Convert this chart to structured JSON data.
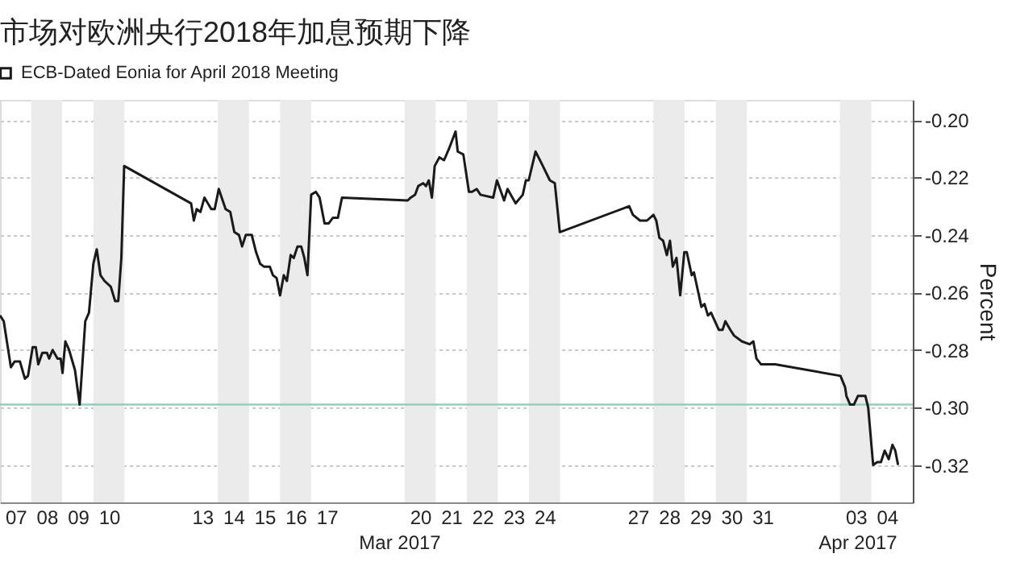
{
  "chart_data": {
    "type": "line",
    "title": "市场对欧洲央行2018年加息预期下降",
    "ylabel": "Percent",
    "legend": "top left",
    "grid": "y",
    "marker": "none",
    "line_style": "solid",
    "xlim": [
      "2017-03-07T00:00",
      "2017-04-05T08:00"
    ],
    "xticks": [
      {
        "value": "2017-03-07T12:00",
        "label": "07"
      },
      {
        "value": "2017-03-08T12:00",
        "label": "08"
      },
      {
        "value": "2017-03-09T12:00",
        "label": "09"
      },
      {
        "value": "2017-03-10T12:00",
        "label": "10"
      },
      {
        "value": "2017-03-13T12:00",
        "label": "13"
      },
      {
        "value": "2017-03-14T12:00",
        "label": "14"
      },
      {
        "value": "2017-03-15T12:00",
        "label": "15"
      },
      {
        "value": "2017-03-16T12:00",
        "label": "16"
      },
      {
        "value": "2017-03-17T12:00",
        "label": "17"
      },
      {
        "value": "2017-03-20T12:00",
        "label": "20"
      },
      {
        "value": "2017-03-21T12:00",
        "label": "21"
      },
      {
        "value": "2017-03-22T12:00",
        "label": "22"
      },
      {
        "value": "2017-03-23T12:00",
        "label": "23"
      },
      {
        "value": "2017-03-24T12:00",
        "label": "24"
      },
      {
        "value": "2017-03-27T12:00",
        "label": "27"
      },
      {
        "value": "2017-03-28T12:00",
        "label": "28"
      },
      {
        "value": "2017-03-29T12:00",
        "label": "29"
      },
      {
        "value": "2017-03-30T12:00",
        "label": "30"
      },
      {
        "value": "2017-03-31T12:00",
        "label": "31"
      },
      {
        "value": "2017-04-03T12:00",
        "label": "03"
      },
      {
        "value": "2017-04-04T12:00",
        "label": "04"
      }
    ],
    "ylim": [
      -0.333,
      -0.193
    ],
    "yticks": [
      {
        "value": -0.2,
        "label": "-0.20"
      },
      {
        "value": -0.22,
        "label": "-0.22"
      },
      {
        "value": -0.24,
        "label": "-0.24"
      },
      {
        "value": -0.26,
        "label": "-0.26"
      },
      {
        "value": -0.28,
        "label": "-0.28"
      },
      {
        "value": -0.3,
        "label": "-0.30"
      },
      {
        "value": -0.32,
        "label": "-0.32"
      }
    ],
    "annotations": [
      "Mar 2017",
      "Apr 2017"
    ],
    "ref_lines": [
      {
        "axis": "y",
        "value": -0.299,
        "color": "#8fd0b8"
      }
    ],
    "bands": [
      {
        "axis": "x",
        "from": "2017-03-08",
        "to": "2017-03-09",
        "color": "#ebebeb"
      },
      {
        "axis": "x",
        "from": "2017-03-10",
        "to": "2017-03-11",
        "color": "#ebebeb"
      },
      {
        "axis": "x",
        "from": "2017-03-14",
        "to": "2017-03-15",
        "color": "#ebebeb"
      },
      {
        "axis": "x",
        "from": "2017-03-16",
        "to": "2017-03-17",
        "color": "#ebebeb"
      },
      {
        "axis": "x",
        "from": "2017-03-20",
        "to": "2017-03-21",
        "color": "#ebebeb"
      },
      {
        "axis": "x",
        "from": "2017-03-22",
        "to": "2017-03-23",
        "color": "#ebebeb"
      },
      {
        "axis": "x",
        "from": "2017-03-24",
        "to": "2017-03-25",
        "color": "#ebebeb"
      },
      {
        "axis": "x",
        "from": "2017-03-28",
        "to": "2017-03-29",
        "color": "#ebebeb"
      },
      {
        "axis": "x",
        "from": "2017-03-30",
        "to": "2017-03-31",
        "color": "#ebebeb"
      },
      {
        "axis": "x",
        "from": "2017-04-03",
        "to": "2017-04-04",
        "color": "#ebebeb"
      }
    ],
    "series": [
      {
        "name": "ECB-Dated Eonia for April 2018 Meeting",
        "color": "#1a1a1a",
        "x": [
          "2017-03-07T00:00",
          "2017-03-07T02:53",
          "2017-03-07T08:24",
          "2017-03-07T11:17",
          "2017-03-07T15:22",
          "2017-03-07T19:12",
          "2017-03-07T21:36",
          "2017-03-08T01:12",
          "2017-03-08T03:36",
          "2017-03-08T05:31",
          "2017-03-08T08:38",
          "2017-03-08T12:14",
          "2017-03-08T13:55",
          "2017-03-08T16:34",
          "2017-03-08T20:24",
          "2017-03-08T22:48",
          "2017-03-09T00:14",
          "2017-03-09T02:24",
          "2017-03-09T05:17",
          "2017-03-09T09:50",
          "2017-03-09T13:26",
          "2017-03-09T17:46",
          "2017-03-09T20:38",
          "2017-03-10T00:00",
          "2017-03-10T02:38",
          "2017-03-10T05:31",
          "2017-03-10T08:38",
          "2017-03-10T13:26",
          "2017-03-10T16:48",
          "2017-03-10T19:12",
          "2017-03-10T21:36",
          "2017-03-10T23:46",
          "2017-03-13T03:22",
          "2017-03-13T05:31",
          "2017-03-13T07:41",
          "2017-03-13T10:34",
          "2017-03-13T13:41",
          "2017-03-13T18:58",
          "2017-03-13T21:36",
          "2017-03-14T00:43",
          "2017-03-14T06:00",
          "2017-03-14T09:36",
          "2017-03-14T12:43",
          "2017-03-14T16:19",
          "2017-03-14T18:43",
          "2017-03-14T21:36",
          "2017-03-15T02:10",
          "2017-03-15T05:31",
          "2017-03-15T08:38",
          "2017-03-15T11:31",
          "2017-03-15T16:05",
          "2017-03-15T18:29",
          "2017-03-15T21:22",
          "2017-03-16T00:00",
          "2017-03-16T02:53",
          "2017-03-16T05:17",
          "2017-03-16T08:10",
          "2017-03-16T10:34",
          "2017-03-16T13:26",
          "2017-03-16T16:19",
          "2017-03-16T18:43",
          "2017-03-16T21:07",
          "2017-03-17T00:00",
          "2017-03-17T03:36",
          "2017-03-17T06:29",
          "2017-03-17T10:19",
          "2017-03-17T13:26",
          "2017-03-17T16:48",
          "2017-03-17T20:38",
          "2017-03-17T23:46",
          "2017-03-20T02:24",
          "2017-03-20T04:48",
          "2017-03-20T08:10",
          "2017-03-20T10:34",
          "2017-03-20T14:24",
          "2017-03-20T16:34",
          "2017-03-20T18:43",
          "2017-03-20T21:07",
          "2017-03-20T23:17",
          "2017-03-21T02:53",
          "2017-03-21T06:29",
          "2017-03-21T10:19",
          "2017-03-21T15:22",
          "2017-03-21T17:02",
          "2017-03-21T21:22",
          "2017-03-22T01:41",
          "2017-03-22T04:05",
          "2017-03-22T07:41",
          "2017-03-22T10:34",
          "2017-03-22T20:24",
          "2017-03-22T23:17",
          "2017-03-23T04:48",
          "2017-03-23T07:26",
          "2017-03-23T13:41",
          "2017-03-23T19:12",
          "2017-03-23T21:36",
          "2017-03-23T23:46",
          "2017-03-24T05:02",
          "2017-03-24T09:36",
          "2017-03-24T16:05",
          "2017-03-24T19:55",
          "2017-03-24T23:46",
          "2017-03-27T05:17",
          "2017-03-27T08:10",
          "2017-03-27T13:41",
          "2017-03-27T18:58",
          "2017-03-28T00:00",
          "2017-03-28T02:10",
          "2017-03-28T04:34",
          "2017-03-28T07:26",
          "2017-03-28T10:19",
          "2017-03-28T12:43",
          "2017-03-28T14:53",
          "2017-03-28T17:46",
          "2017-03-28T20:38",
          "2017-03-28T23:46",
          "2017-03-29T01:41",
          "2017-03-29T05:31",
          "2017-03-29T07:12",
          "2017-03-29T10:05",
          "2017-03-29T12:58",
          "2017-03-29T15:22",
          "2017-03-29T18:00",
          "2017-03-29T20:24",
          "2017-03-30T02:24",
          "2017-03-30T05:17",
          "2017-03-30T07:26",
          "2017-03-30T11:17",
          "2017-03-30T14:10",
          "2017-03-30T20:10",
          "2017-03-31T02:10",
          "2017-03-31T05:02",
          "2017-03-31T07:26",
          "2017-03-31T11:02",
          "2017-03-31T21:50",
          "2017-04-03T00:14",
          "2017-04-03T03:50",
          "2017-04-03T04:48",
          "2017-04-03T07:41",
          "2017-04-03T10:34",
          "2017-04-03T13:41",
          "2017-04-03T17:02",
          "2017-04-03T19:26",
          "2017-04-03T21:36",
          "2017-04-04T01:26",
          "2017-04-04T04:34",
          "2017-04-04T07:26",
          "2017-04-04T10:19",
          "2017-04-04T13:26",
          "2017-04-04T16:19",
          "2017-04-04T18:29",
          "2017-04-04T20:38"
        ],
        "values": [
          -0.268,
          -0.27,
          -0.286,
          -0.284,
          -0.284,
          -0.29,
          -0.289,
          -0.279,
          -0.279,
          -0.285,
          -0.281,
          -0.281,
          -0.283,
          -0.28,
          -0.283,
          -0.283,
          -0.288,
          -0.277,
          -0.28,
          -0.287,
          -0.299,
          -0.27,
          -0.267,
          -0.25,
          -0.245,
          -0.254,
          -0.256,
          -0.258,
          -0.263,
          -0.263,
          -0.248,
          -0.216,
          -0.229,
          -0.235,
          -0.231,
          -0.232,
          -0.227,
          -0.231,
          -0.231,
          -0.224,
          -0.231,
          -0.232,
          -0.239,
          -0.24,
          -0.244,
          -0.24,
          -0.24,
          -0.246,
          -0.25,
          -0.251,
          -0.251,
          -0.254,
          -0.255,
          -0.261,
          -0.254,
          -0.256,
          -0.247,
          -0.248,
          -0.244,
          -0.244,
          -0.248,
          -0.254,
          -0.226,
          -0.225,
          -0.227,
          -0.236,
          -0.236,
          -0.234,
          -0.234,
          -0.227,
          -0.228,
          -0.227,
          -0.226,
          -0.223,
          -0.222,
          -0.223,
          -0.221,
          -0.227,
          -0.216,
          -0.213,
          -0.214,
          -0.21,
          -0.204,
          -0.211,
          -0.212,
          -0.225,
          -0.225,
          -0.224,
          -0.226,
          -0.227,
          -0.221,
          -0.228,
          -0.224,
          -0.229,
          -0.226,
          -0.221,
          -0.221,
          -0.211,
          -0.215,
          -0.221,
          -0.222,
          -0.239,
          -0.23,
          -0.233,
          -0.235,
          -0.235,
          -0.233,
          -0.235,
          -0.241,
          -0.242,
          -0.247,
          -0.242,
          -0.251,
          -0.248,
          -0.261,
          -0.246,
          -0.246,
          -0.254,
          -0.253,
          -0.259,
          -0.265,
          -0.264,
          -0.268,
          -0.267,
          -0.273,
          -0.273,
          -0.27,
          -0.273,
          -0.275,
          -0.277,
          -0.278,
          -0.277,
          -0.283,
          -0.285,
          -0.285,
          -0.289,
          -0.293,
          -0.296,
          -0.299,
          -0.299,
          -0.296,
          -0.296,
          -0.296,
          -0.3,
          -0.32,
          -0.319,
          -0.319,
          -0.315,
          -0.318,
          -0.313,
          -0.315,
          -0.32
        ]
      }
    ]
  }
}
